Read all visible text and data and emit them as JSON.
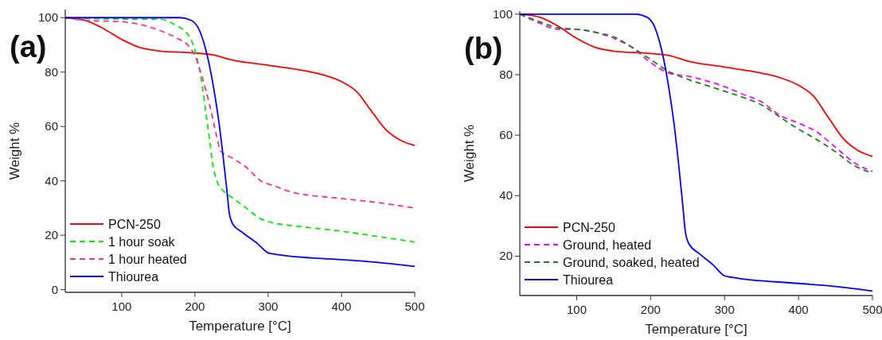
{
  "chart_data": [
    {
      "type": "line",
      "title": "(a)",
      "xlabel": "Temperature [°C]",
      "ylabel": "Weight %",
      "xlim": [
        23,
        500
      ],
      "ylim": [
        -1,
        103
      ],
      "xticks": [
        100,
        200,
        300,
        400,
        500
      ],
      "yticks": [
        0,
        20,
        40,
        60,
        80,
        100
      ],
      "legend": "bottom left",
      "grid": false,
      "series": [
        {
          "name": "PCN-250",
          "color": "#ff0000",
          "line_style": "solid",
          "x": [
            23,
            50,
            75,
            100,
            125,
            150,
            200,
            225,
            250,
            300,
            350,
            375,
            400,
            420,
            440,
            460,
            480,
            500
          ],
          "values": [
            100,
            99,
            96,
            92,
            89,
            87.8,
            87,
            86.3,
            84.5,
            82.5,
            80.5,
            79,
            76.5,
            73,
            66,
            59,
            55,
            53
          ]
        },
        {
          "name": "1 hour soak",
          "color": "#00ee00",
          "line_style": "dashed",
          "x": [
            23,
            100,
            150,
            175,
            190,
            200,
            210,
            215,
            220,
            225,
            230,
            240,
            250,
            270,
            290,
            300,
            350,
            400,
            450,
            500
          ],
          "values": [
            100,
            99.5,
            99.5,
            97,
            94,
            88,
            75,
            65,
            55,
            45,
            40,
            36,
            34,
            30,
            26,
            25,
            23,
            21.5,
            19.5,
            17.5
          ]
        },
        {
          "name": "1 hour heated",
          "color": "#ff2d8a",
          "line_style": "dashed",
          "x": [
            23,
            50,
            100,
            125,
            150,
            175,
            190,
            200,
            210,
            220,
            230,
            235,
            250,
            270,
            290,
            310,
            330,
            400,
            450,
            500
          ],
          "values": [
            100,
            99,
            98.5,
            97.5,
            95.5,
            92.5,
            90,
            86,
            78,
            68,
            56,
            51,
            48.5,
            45,
            40,
            38,
            36,
            33.5,
            32,
            30
          ]
        },
        {
          "name": "Thiourea",
          "color": "#0000ff",
          "line_style": "solid",
          "x": [
            23,
            180,
            195,
            205,
            215,
            225,
            232,
            238,
            243,
            247,
            252,
            265,
            285,
            300,
            310,
            400,
            450,
            500
          ],
          "values": [
            100,
            100,
            99,
            96,
            88,
            75,
            63,
            50,
            38,
            28,
            24,
            21,
            17,
            13.5,
            13,
            11,
            10,
            8.5
          ]
        }
      ]
    },
    {
      "type": "line",
      "title": "(b)",
      "xlabel": "Temperature [°C]",
      "ylabel": "Weight %",
      "xlim": [
        23,
        500
      ],
      "ylim": [
        7,
        101
      ],
      "xticks": [
        100,
        200,
        300,
        400,
        500
      ],
      "yticks": [
        20,
        40,
        60,
        80,
        100
      ],
      "legend": "bottom left",
      "grid": false,
      "series": [
        {
          "name": "PCN-250",
          "color": "#ff0000",
          "line_style": "solid",
          "x": [
            23,
            50,
            75,
            100,
            125,
            150,
            200,
            225,
            250,
            300,
            350,
            375,
            400,
            420,
            440,
            460,
            480,
            500
          ],
          "values": [
            100,
            99,
            96,
            92,
            89,
            87.8,
            87,
            86.3,
            84.5,
            82.5,
            80.5,
            79,
            76.5,
            73,
            66,
            59,
            55,
            53
          ]
        },
        {
          "name": "Ground, heated",
          "color": "#ff00ff",
          "line_style": "dashed",
          "x": [
            23,
            50,
            75,
            100,
            125,
            150,
            175,
            200,
            225,
            250,
            275,
            300,
            325,
            350,
            375,
            400,
            425,
            450,
            475,
            500
          ],
          "values": [
            100,
            97,
            95,
            95,
            94,
            92,
            89,
            84,
            80.5,
            79.5,
            78,
            76,
            73.5,
            71,
            66.5,
            64,
            61,
            56,
            51,
            48
          ]
        },
        {
          "name": "Ground, soaked, heated",
          "color": "#1e7f1e",
          "line_style": "dashed",
          "x": [
            23,
            50,
            75,
            100,
            125,
            150,
            175,
            200,
            225,
            250,
            275,
            300,
            325,
            350,
            375,
            400,
            425,
            450,
            475,
            500
          ],
          "values": [
            100,
            97.5,
            95.5,
            95,
            94,
            92.5,
            89,
            85,
            81,
            78.5,
            76.5,
            74.5,
            72.5,
            70,
            66,
            62,
            58.5,
            54.5,
            50,
            47.5
          ]
        },
        {
          "name": "Thiourea",
          "color": "#0000ff",
          "line_style": "solid",
          "x": [
            23,
            180,
            195,
            205,
            215,
            225,
            232,
            238,
            243,
            247,
            252,
            265,
            285,
            300,
            310,
            400,
            450,
            500
          ],
          "values": [
            100,
            100,
            99,
            96,
            88,
            75,
            63,
            50,
            38,
            28,
            24,
            21,
            17,
            13.5,
            13,
            11,
            10,
            8.5
          ]
        }
      ]
    }
  ]
}
